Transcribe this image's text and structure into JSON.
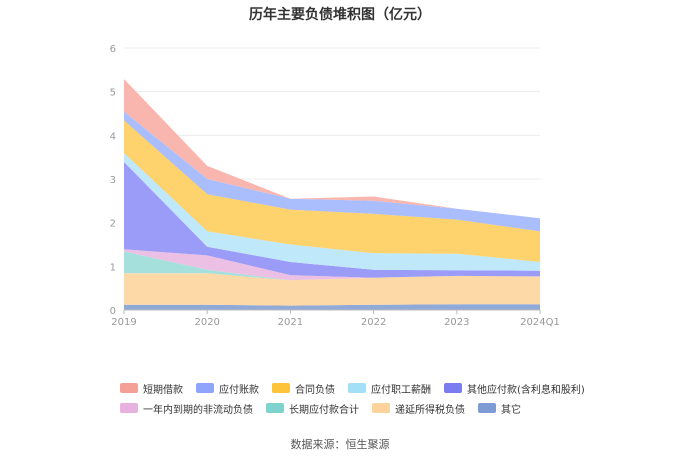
{
  "chart_data": {
    "type": "area",
    "stacked": true,
    "title": "历年主要负债堆积图（亿元）",
    "categories": [
      "2019",
      "2020",
      "2021",
      "2022",
      "2023",
      "2024Q1"
    ],
    "yticks": [
      "0",
      "1",
      "2",
      "3",
      "4",
      "5",
      "6"
    ],
    "ylim": [
      0,
      6
    ],
    "grid": true,
    "legend_position": "bottom",
    "series": [
      {
        "name": "其它",
        "color": "#8fa9d9",
        "values": [
          0.12,
          0.12,
          0.1,
          0.12,
          0.13,
          0.13
        ]
      },
      {
        "name": "递延所得税负债",
        "color": "#fdd9a8",
        "values": [
          0.72,
          0.72,
          0.58,
          0.62,
          0.65,
          0.64
        ]
      },
      {
        "name": "长期应付款合计",
        "color": "#a6e0dd",
        "values": [
          0.5,
          0.08,
          0.0,
          0.0,
          0.0,
          0.0
        ]
      },
      {
        "name": "一年内到期的非流动负债",
        "color": "#ecc0e4",
        "values": [
          0.05,
          0.33,
          0.12,
          0.0,
          0.0,
          0.0
        ]
      },
      {
        "name": "其他应付款(含利息和股利)",
        "color": "#9b9cf7",
        "values": [
          2.0,
          0.2,
          0.3,
          0.18,
          0.13,
          0.13
        ]
      },
      {
        "name": "应付职工薪酬",
        "color": "#bfe8fa",
        "values": [
          0.2,
          0.35,
          0.4,
          0.38,
          0.38,
          0.2
        ]
      },
      {
        "name": "合同负债",
        "color": "#fed36e",
        "values": [
          0.75,
          0.85,
          0.8,
          0.9,
          0.78,
          0.7
        ]
      },
      {
        "name": "应付账款",
        "color": "#aabdfc",
        "values": [
          0.2,
          0.35,
          0.25,
          0.3,
          0.25,
          0.3
        ]
      },
      {
        "name": "短期借款",
        "color": "#f9b6ae",
        "values": [
          0.75,
          0.3,
          0.0,
          0.1,
          0.0,
          0.0
        ]
      }
    ]
  },
  "legend": [
    [
      {
        "label": "短期借款",
        "color": "#f5a097"
      },
      {
        "label": "应付账款",
        "color": "#8ea5fb"
      },
      {
        "label": "合同负债",
        "color": "#fdc43a"
      },
      {
        "label": "应付职工薪酬",
        "color": "#a3dff7"
      },
      {
        "label": "其他应付款(含利息和股利)",
        "color": "#7b7cf0"
      }
    ],
    [
      {
        "label": "一年内到期的非流动负债",
        "color": "#e9b1df"
      },
      {
        "label": "长期应付款合计",
        "color": "#7fd3cf"
      },
      {
        "label": "递延所得税负债",
        "color": "#fcd39b"
      },
      {
        "label": "其它",
        "color": "#7e9bd6"
      }
    ]
  ],
  "source": "数据来源：恒生聚源"
}
